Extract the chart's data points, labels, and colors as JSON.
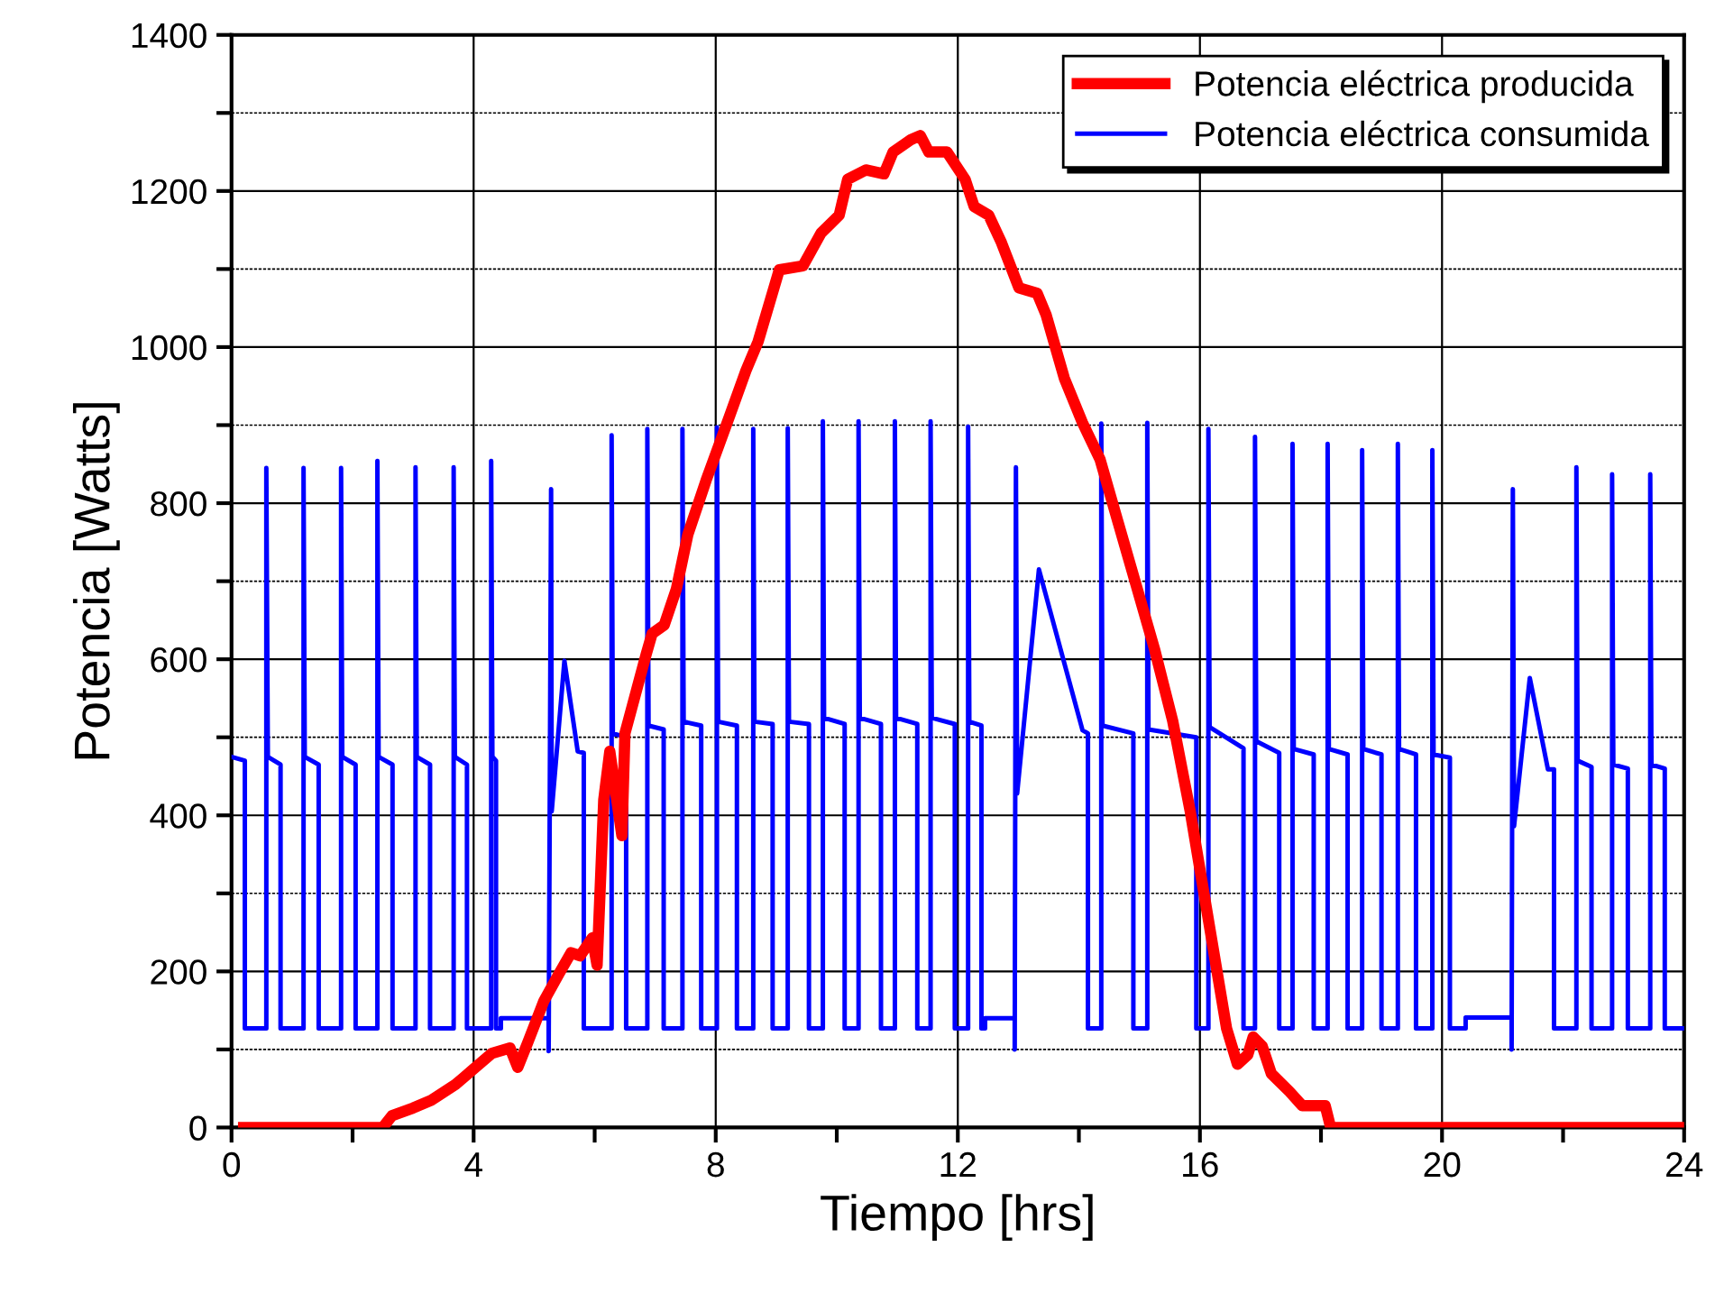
{
  "chart_data": {
    "type": "line",
    "xlabel": "Tiempo [hrs]",
    "ylabel": "Potencia [Watts]",
    "xlim": [
      0,
      24
    ],
    "ylim": [
      0,
      1400
    ],
    "xticks": [
      0,
      {
        "value": 2,
        "label": null
      },
      4,
      {
        "value": 6,
        "label": null
      },
      8,
      {
        "value": 10,
        "label": null
      },
      12,
      {
        "value": 14,
        "label": null
      },
      16,
      {
        "value": 18,
        "label": null
      },
      20,
      {
        "value": 22,
        "label": null
      },
      24
    ],
    "yticks": [
      0,
      {
        "value": 100,
        "label": null
      },
      200,
      {
        "value": 300,
        "label": null
      },
      400,
      {
        "value": 500,
        "label": null
      },
      600,
      {
        "value": 700,
        "label": null
      },
      800,
      {
        "value": 900,
        "label": null
      },
      1000,
      {
        "value": 1100,
        "label": null
      },
      1200,
      {
        "value": 1300,
        "label": null
      },
      1400
    ],
    "grid": true,
    "legend": "top right",
    "marker": "none",
    "line_style": "solid",
    "series": [
      {
        "name": "Potencia eléctrica producida",
        "color": "#ff0000",
        "x": [
          0.2,
          2.5,
          2.65,
          3.0,
          3.3,
          3.7,
          4.0,
          4.3,
          4.6,
          4.73,
          4.9,
          5.16,
          5.41,
          5.61,
          5.76,
          5.96,
          6.04,
          6.15,
          6.25,
          6.45,
          6.5,
          6.85,
          6.95,
          7.15,
          7.35,
          7.54,
          7.84,
          8.24,
          8.5,
          8.7,
          9.05,
          9.44,
          9.74,
          10.04,
          10.18,
          10.48,
          10.78,
          10.93,
          11.23,
          11.38,
          11.52,
          11.82,
          12.12,
          12.27,
          12.51,
          12.72,
          13.01,
          13.31,
          13.46,
          13.76,
          14.06,
          14.35,
          14.65,
          14.95,
          15.25,
          15.55,
          15.84,
          16.14,
          16.44,
          16.62,
          16.79,
          16.88,
          17.03,
          17.18,
          17.48,
          17.69,
          18.07,
          18.16,
          24
        ],
        "values": [
          0,
          0,
          15,
          25,
          35,
          55,
          75,
          95,
          102,
          77,
          110,
          162,
          197,
          224,
          220,
          243,
          208,
          420,
          482,
          374,
          505,
          606,
          633,
          644,
          690,
          760,
          829,
          914,
          970,
          1007,
          1099,
          1104,
          1146,
          1169,
          1215,
          1227,
          1222,
          1250,
          1266,
          1271,
          1250,
          1250,
          1215,
          1180,
          1169,
          1134,
          1076,
          1069,
          1041,
          960,
          903,
          856,
          775,
          694,
          613,
          521,
          405,
          266,
          127,
          81,
          93,
          116,
          104,
          69,
          46,
          28,
          28,
          0,
          0
        ]
      },
      {
        "name": "Potencia eléctrica consumida",
        "color": "#0000ff",
        "x": [
          0,
          0.22,
          0.22,
          0.575,
          0.575,
          0.6,
          0.81,
          0.81,
          1.19,
          1.19,
          1.21,
          1.44,
          1.44,
          1.81,
          1.81,
          1.83,
          2.05,
          2.05,
          2.41,
          2.41,
          2.43,
          2.66,
          2.66,
          3.04,
          3.04,
          3.06,
          3.28,
          3.28,
          3.67,
          3.67,
          3.69,
          3.89,
          3.89,
          4.29,
          4.29,
          4.31,
          4.37,
          4.37,
          4.45,
          4.45,
          5.24,
          5.24,
          5.28,
          5.29,
          5.5,
          5.72,
          5.82,
          5.82,
          6.28,
          6.28,
          6.3,
          6.52,
          6.52,
          6.87,
          6.87,
          6.89,
          7.14,
          7.14,
          7.45,
          7.45,
          7.47,
          7.76,
          7.76,
          8.02,
          8.02,
          8.04,
          8.35,
          8.35,
          8.62,
          8.62,
          8.64,
          8.94,
          8.94,
          9.19,
          9.19,
          9.21,
          9.54,
          9.54,
          9.77,
          9.77,
          9.79,
          10.13,
          10.13,
          10.36,
          10.36,
          10.38,
          10.73,
          10.73,
          10.96,
          10.96,
          10.98,
          11.33,
          11.33,
          11.55,
          11.55,
          11.57,
          11.95,
          11.95,
          12.17,
          12.17,
          12.19,
          12.39,
          12.39,
          12.45,
          12.45,
          12.94,
          12.94,
          12.96,
          12.98,
          13.34,
          14.06,
          14.15,
          14.15,
          14.37,
          14.37,
          14.39,
          14.9,
          14.9,
          15.13,
          15.13,
          15.15,
          15.94,
          15.94,
          16.14,
          16.14,
          16.16,
          16.72,
          16.72,
          16.91,
          16.91,
          16.93,
          17.31,
          17.31,
          17.53,
          17.53,
          17.55,
          17.88,
          17.88,
          18.11,
          18.11,
          18.13,
          18.44,
          18.44,
          18.68,
          18.68,
          18.7,
          19.0,
          19.0,
          19.27,
          19.27,
          19.29,
          19.57,
          19.57,
          19.84,
          19.84,
          19.86,
          20.13,
          20.13,
          20.39,
          20.39,
          21.15,
          21.15,
          21.17,
          21.19,
          21.45,
          21.75,
          21.85,
          21.85,
          22.22,
          22.22,
          22.24,
          22.47,
          22.47,
          22.81,
          22.81,
          22.83,
          23.07,
          23.07,
          23.44,
          23.44,
          23.46,
          23.68,
          23.68,
          24
        ],
        "values": [
          475,
          470,
          127,
          127,
          845,
          475,
          465,
          127,
          127,
          845,
          475,
          465,
          127,
          127,
          845,
          475,
          465,
          127,
          127,
          854,
          475,
          465,
          127,
          127,
          846,
          475,
          465,
          127,
          127,
          846,
          475,
          465,
          127,
          127,
          854,
          475,
          470,
          127,
          127,
          140,
          140,
          98,
          818,
          405,
          598,
          482,
          480,
          127,
          127,
          887,
          505,
          500,
          127,
          127,
          895,
          515,
          510,
          127,
          127,
          895,
          520,
          515,
          127,
          127,
          897,
          520,
          515,
          127,
          127,
          895,
          520,
          517,
          127,
          127,
          896,
          520,
          517,
          127,
          127,
          905,
          525,
          517,
          127,
          127,
          905,
          525,
          517,
          127,
          127,
          905,
          525,
          517,
          127,
          127,
          905,
          525,
          517,
          127,
          127,
          898,
          520,
          515,
          127,
          127,
          140,
          140,
          100,
          846,
          428,
          715,
          509,
          505,
          127,
          127,
          902,
          515,
          505,
          127,
          127,
          903,
          510,
          500,
          127,
          127,
          895,
          513,
          486,
          127,
          127,
          885,
          495,
          480,
          127,
          127,
          876,
          485,
          478,
          127,
          127,
          876,
          485,
          478,
          127,
          127,
          868,
          485,
          478,
          127,
          127,
          876,
          485,
          478,
          127,
          127,
          868,
          478,
          474,
          127,
          127,
          141,
          141,
          100,
          818,
          386,
          576,
          459,
          459,
          127,
          127,
          846,
          470,
          462,
          127,
          127,
          837,
          465,
          460,
          127,
          127,
          837,
          465,
          460,
          127,
          127
        ]
      }
    ]
  }
}
